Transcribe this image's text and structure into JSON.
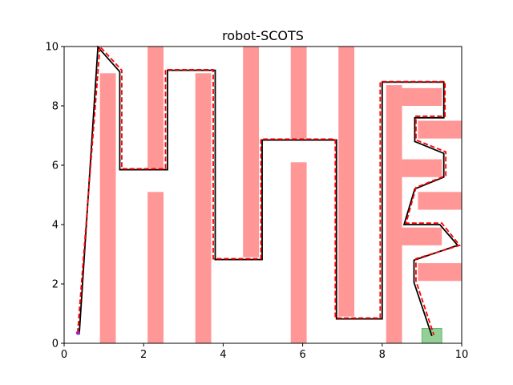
{
  "chart_data": {
    "type": "line",
    "title": "robot-SCOTS",
    "xlabel": "",
    "ylabel": "",
    "xlim": [
      0,
      10
    ],
    "ylim": [
      0,
      10
    ],
    "xticks": [
      "0",
      "2",
      "4",
      "6",
      "8",
      "10"
    ],
    "yticks": [
      "0",
      "2",
      "4",
      "6",
      "8",
      "10"
    ],
    "grid": false,
    "obstacle_color": "#ff6b6b",
    "goal_color": "#4caf50",
    "obstacles": [
      {
        "x": [
          0.9,
          1.3
        ],
        "y": [
          0,
          9.1
        ]
      },
      {
        "x": [
          2.1,
          2.5
        ],
        "y": [
          0,
          5.1
        ]
      },
      {
        "x": [
          2.1,
          2.5
        ],
        "y": [
          5.9,
          10
        ]
      },
      {
        "x": [
          3.3,
          3.7
        ],
        "y": [
          0,
          9.1
        ]
      },
      {
        "x": [
          4.5,
          4.9
        ],
        "y": [
          2.9,
          10
        ]
      },
      {
        "x": [
          5.7,
          6.1
        ],
        "y": [
          0,
          6.1
        ]
      },
      {
        "x": [
          5.7,
          6.1
        ],
        "y": [
          6.9,
          10
        ]
      },
      {
        "x": [
          6.9,
          7.3
        ],
        "y": [
          0.9,
          10
        ]
      },
      {
        "x": [
          8.1,
          8.5
        ],
        "y": [
          0,
          8.7
        ]
      },
      {
        "x": [
          8.5,
          9.5
        ],
        "y": [
          8.0,
          8.6
        ]
      },
      {
        "x": [
          8.9,
          10
        ],
        "y": [
          6.9,
          7.5
        ]
      },
      {
        "x": [
          8.5,
          9.5
        ],
        "y": [
          5.6,
          6.2
        ]
      },
      {
        "x": [
          8.9,
          10
        ],
        "y": [
          4.5,
          5.1
        ]
      },
      {
        "x": [
          8.5,
          9.5
        ],
        "y": [
          3.3,
          3.9
        ]
      },
      {
        "x": [
          8.9,
          10
        ],
        "y": [
          2.1,
          2.7
        ]
      }
    ],
    "goal": {
      "x": [
        9.0,
        9.5
      ],
      "y": [
        0,
        0.5
      ]
    },
    "start": {
      "x": 0.35,
      "y": 0.35
    },
    "series": [
      {
        "style": "solid",
        "color": "#000000",
        "x": [
          0.38,
          0.85,
          1.4,
          1.4,
          2.6,
          2.6,
          3.8,
          3.8,
          4.98,
          4.98,
          6.85,
          6.85,
          8.0,
          8.0,
          9.55,
          9.55,
          8.82,
          8.82,
          9.55,
          9.55,
          8.82,
          8.55,
          9.45,
          9.9,
          8.8,
          8.8,
          9.25
        ],
        "y": [
          0.3,
          9.98,
          9.15,
          5.85,
          5.85,
          9.2,
          9.2,
          2.82,
          2.82,
          6.85,
          6.85,
          0.82,
          0.82,
          8.8,
          8.8,
          7.6,
          7.6,
          6.8,
          6.4,
          5.6,
          5.2,
          4.0,
          4.0,
          3.3,
          2.8,
          2.05,
          0.25
        ]
      },
      {
        "style": "dashed",
        "color": "#ff0000",
        "x": [
          0.34,
          0.9,
          1.45,
          1.45,
          2.55,
          2.55,
          3.75,
          3.75,
          4.95,
          4.95,
          6.82,
          6.82,
          7.95,
          7.95,
          9.58,
          9.58,
          8.85,
          8.85,
          9.6,
          9.6,
          8.85,
          8.6,
          9.5,
          9.95,
          8.85,
          8.85,
          9.3
        ],
        "y": [
          0.35,
          10.0,
          9.2,
          5.88,
          5.88,
          9.22,
          9.22,
          2.85,
          2.85,
          6.88,
          6.88,
          0.85,
          0.85,
          8.82,
          8.82,
          7.65,
          7.65,
          6.85,
          6.45,
          5.65,
          5.25,
          4.05,
          4.05,
          3.3,
          2.85,
          2.1,
          0.28
        ]
      }
    ]
  }
}
